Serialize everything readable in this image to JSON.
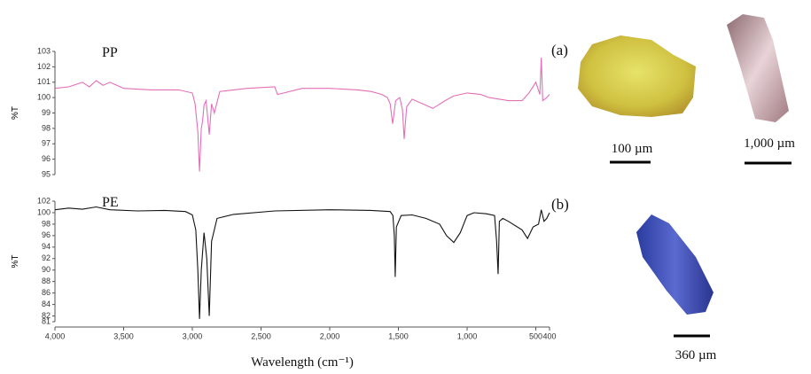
{
  "chart_data": [
    {
      "type": "line",
      "label": "PP",
      "y_label": "%T",
      "color": "#e36fb8",
      "xlim": [
        4000,
        400
      ],
      "ylim": [
        95,
        103
      ],
      "yticks": [
        95,
        96,
        97,
        98,
        99,
        100,
        101,
        102,
        103
      ],
      "x": [
        4000,
        3900,
        3800,
        3750,
        3700,
        3650,
        3600,
        3500,
        3300,
        3100,
        3000,
        2980,
        2960,
        2948,
        2935,
        2925,
        2915,
        2900,
        2877,
        2860,
        2840,
        2800,
        2600,
        2400,
        2380,
        2200,
        2000,
        1800,
        1700,
        1620,
        1580,
        1560,
        1542,
        1520,
        1490,
        1470,
        1458,
        1440,
        1400,
        1300,
        1250,
        1160,
        1100,
        1000,
        900,
        840,
        700,
        600,
        550,
        500,
        470,
        460,
        450,
        420,
        400
      ],
      "values": [
        100.6,
        100.7,
        101.0,
        100.7,
        101.1,
        100.8,
        101.0,
        100.6,
        100.5,
        100.5,
        100.3,
        99.6,
        97.8,
        95.2,
        98.0,
        98.5,
        99.5,
        99.8,
        97.6,
        99.6,
        99.0,
        100.4,
        100.6,
        100.7,
        100.2,
        100.6,
        100.6,
        100.5,
        100.4,
        100.2,
        100.0,
        99.6,
        98.3,
        99.8,
        100.0,
        99.2,
        97.3,
        99.4,
        99.9,
        99.5,
        99.3,
        99.8,
        100.1,
        100.3,
        100.2,
        100.0,
        99.8,
        99.8,
        100.3,
        101.0,
        100.2,
        102.6,
        99.8,
        100.0,
        100.2
      ]
    },
    {
      "type": "line",
      "label": "PE",
      "y_label": "%T",
      "color": "#111111",
      "xlim": [
        4000,
        400
      ],
      "ylim": [
        81,
        102
      ],
      "yticks": [
        81,
        82,
        84,
        86,
        88,
        90,
        92,
        94,
        96,
        98,
        100,
        102
      ],
      "xticks": [
        {
          "value": 4000,
          "label": "4,000"
        },
        {
          "value": 3500,
          "label": "3,500"
        },
        {
          "value": 3000,
          "label": "3,000"
        },
        {
          "value": 2500,
          "label": "2,500"
        },
        {
          "value": 2000,
          "label": "2,000"
        },
        {
          "value": 1500,
          "label": "1,500"
        },
        {
          "value": 1000,
          "label": "1,000"
        },
        500,
        400
      ],
      "x_label": "Wavelength (cm⁻¹)",
      "x": [
        4000,
        3900,
        3800,
        3700,
        3600,
        3400,
        3200,
        3050,
        3000,
        2975,
        2960,
        2948,
        2935,
        2915,
        2895,
        2877,
        2860,
        2820,
        2700,
        2400,
        2000,
        1700,
        1560,
        1540,
        1530,
        1523,
        1515,
        1480,
        1400,
        1300,
        1200,
        1150,
        1097,
        1050,
        1000,
        950,
        860,
        800,
        785,
        774,
        765,
        740,
        700,
        600,
        560,
        520,
        480,
        460,
        440,
        420,
        400
      ],
      "values": [
        100.5,
        100.8,
        100.6,
        101.0,
        100.5,
        100.3,
        100.4,
        100.2,
        99.6,
        97.0,
        90.0,
        81.5,
        90.0,
        96.5,
        92.0,
        82.0,
        95.0,
        99.0,
        99.7,
        100.3,
        100.5,
        100.4,
        100.2,
        99.5,
        96.0,
        88.8,
        97.5,
        99.5,
        99.6,
        99.0,
        98.0,
        96.0,
        94.8,
        96.5,
        99.5,
        100.0,
        99.8,
        99.5,
        95.0,
        89.3,
        98.5,
        99.0,
        98.5,
        97.0,
        95.5,
        97.5,
        98.0,
        100.5,
        98.5,
        99.0,
        100.0
      ]
    }
  ],
  "panel_labels": [
    "(a)",
    "(b)"
  ],
  "scale_bars": [
    "100 µm",
    "1,000 µm",
    "360 µm"
  ]
}
